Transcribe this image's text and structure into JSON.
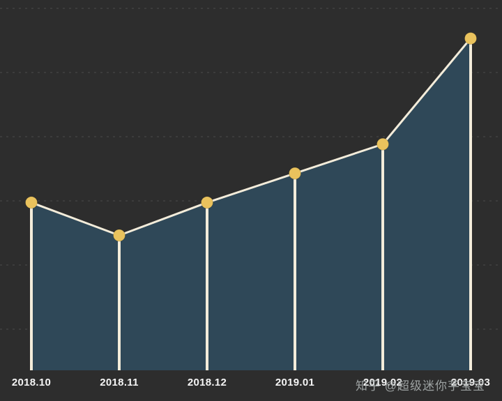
{
  "chart_data": {
    "type": "area",
    "title": "",
    "xlabel": "",
    "ylabel": "",
    "categories": [
      "2018.10",
      "2018.11",
      "2018.12",
      "2019.01",
      "2019.02",
      "2019.03"
    ],
    "values": [
      46,
      37,
      46,
      54,
      62,
      91
    ],
    "ylim": [
      0,
      100
    ],
    "grid": "dashed-horizontal",
    "gridline_count": 6,
    "legend": "none",
    "marker": "circle",
    "colors": {
      "background": "#2d2d2d",
      "area_fill": "#2f4858",
      "line": "#f3ecda",
      "stem": "#f3ecda",
      "marker_fill": "#e9c25d",
      "gridline": "#414141",
      "tick_label": "#f5f5f5",
      "watermark": "#aaafaf"
    }
  },
  "watermark": {
    "text": "知乎 @超级迷你芋宝宝"
  }
}
